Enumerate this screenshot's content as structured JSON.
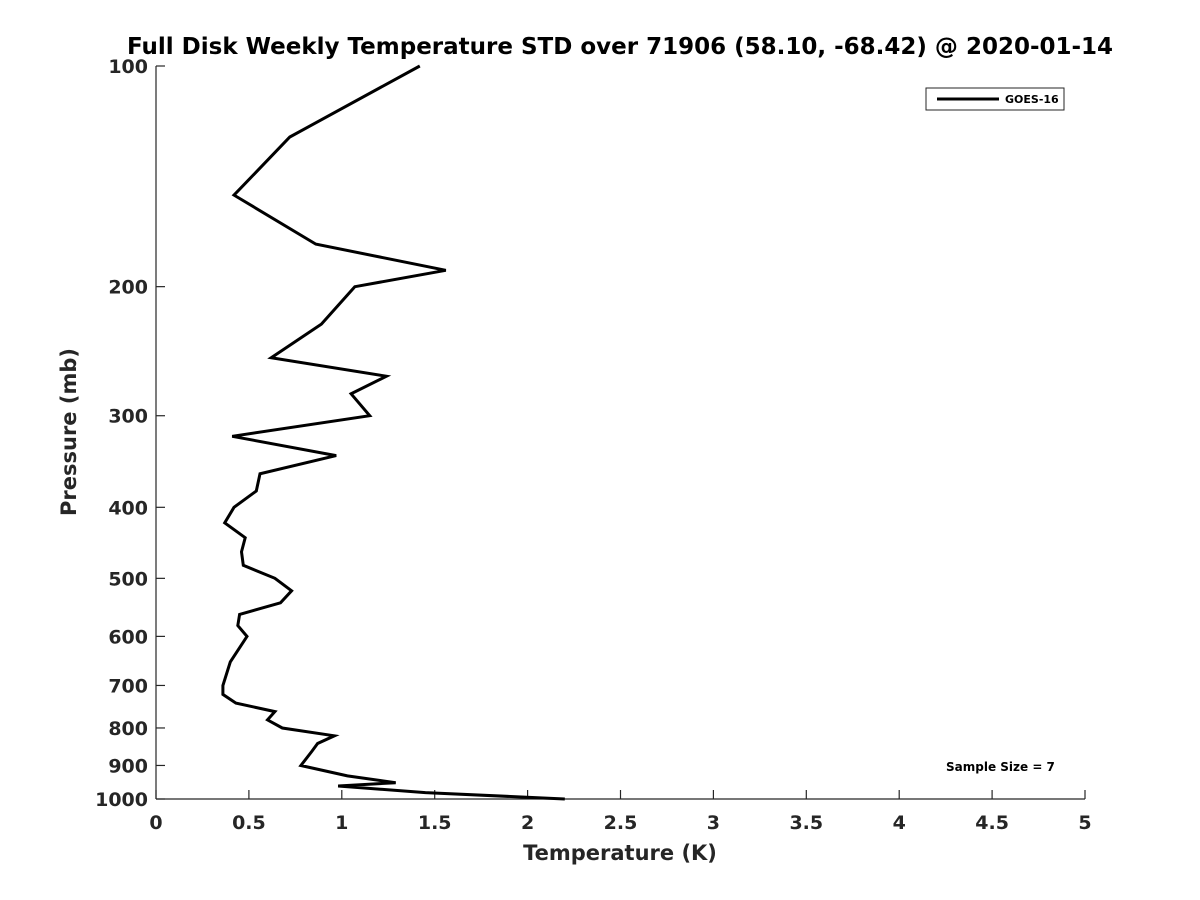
{
  "chart_data": {
    "type": "line",
    "title": "Full Disk Weekly Temperature STD over 71906 (58.10, -68.42) @ 2020-01-14",
    "xlabel": "Temperature (K)",
    "ylabel": "Pressure (mb)",
    "xlim": [
      0,
      5
    ],
    "ylim": [
      1000,
      100
    ],
    "yscale": "log",
    "y_inverted": true,
    "x_ticks": [
      "0",
      "0.5",
      "1",
      "1.5",
      "2",
      "2.5",
      "3",
      "3.5",
      "4",
      "4.5",
      "5"
    ],
    "y_ticks": [
      "100",
      "200",
      "300",
      "400",
      "500",
      "600",
      "700",
      "800",
      "900",
      "1000"
    ],
    "grid": false,
    "legend_position": "top-right",
    "series": [
      {
        "name": "GOES-16",
        "color": "#000000",
        "points": [
          [
            1.42,
            100
          ],
          [
            0.72,
            125
          ],
          [
            0.42,
            150
          ],
          [
            0.86,
            175
          ],
          [
            1.56,
            190
          ],
          [
            1.07,
            200
          ],
          [
            0.89,
            225
          ],
          [
            0.62,
            250
          ],
          [
            1.24,
            265
          ],
          [
            1.05,
            280
          ],
          [
            1.15,
            300
          ],
          [
            0.41,
            320
          ],
          [
            0.97,
            340
          ],
          [
            0.56,
            360
          ],
          [
            0.54,
            380
          ],
          [
            0.42,
            400
          ],
          [
            0.37,
            420
          ],
          [
            0.48,
            440
          ],
          [
            0.46,
            460
          ],
          [
            0.47,
            480
          ],
          [
            0.64,
            500
          ],
          [
            0.73,
            520
          ],
          [
            0.67,
            540
          ],
          [
            0.45,
            560
          ],
          [
            0.44,
            580
          ],
          [
            0.49,
            600
          ],
          [
            0.4,
            650
          ],
          [
            0.36,
            700
          ],
          [
            0.36,
            720
          ],
          [
            0.43,
            740
          ],
          [
            0.64,
            760
          ],
          [
            0.6,
            780
          ],
          [
            0.68,
            800
          ],
          [
            0.96,
            820
          ],
          [
            0.87,
            840
          ],
          [
            0.84,
            860
          ],
          [
            0.78,
            900
          ],
          [
            1.03,
            930
          ],
          [
            1.29,
            950
          ],
          [
            0.98,
            960
          ],
          [
            1.45,
            980
          ],
          [
            2.2,
            1000
          ]
        ]
      }
    ],
    "annotations": [
      "Sample Size = 7"
    ]
  }
}
